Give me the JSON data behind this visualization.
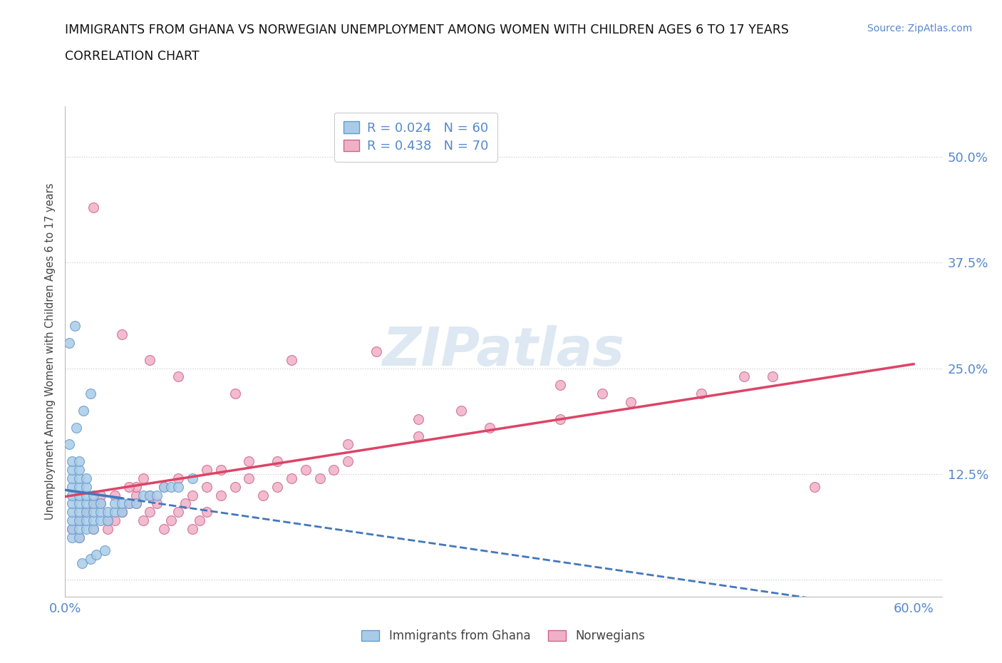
{
  "title_line1": "IMMIGRANTS FROM GHANA VS NORWEGIAN UNEMPLOYMENT AMONG WOMEN WITH CHILDREN AGES 6 TO 17 YEARS",
  "title_line2": "CORRELATION CHART",
  "source_text": "Source: ZipAtlas.com",
  "ylabel": "Unemployment Among Women with Children Ages 6 to 17 years",
  "xlim": [
    0.0,
    0.62
  ],
  "ylim": [
    -0.02,
    0.56
  ],
  "ytick_vals": [
    0.0,
    0.125,
    0.25,
    0.375,
    0.5
  ],
  "ytick_labels": [
    "",
    "12.5%",
    "25.0%",
    "37.5%",
    "50.0%"
  ],
  "xtick_vals": [
    0.0,
    0.1,
    0.2,
    0.3,
    0.4,
    0.5,
    0.6
  ],
  "xtick_labels": [
    "0.0%",
    "",
    "",
    "",
    "",
    "",
    "60.0%"
  ],
  "ghana_color": "#a8cce8",
  "ghana_edge_color": "#6699cc",
  "norwegian_color": "#f0b0c8",
  "norwegian_edge_color": "#cc6688",
  "ghana_line_color": "#4477bb",
  "norwegian_line_color": "#dd4466",
  "watermark_color": "#dde8f2",
  "background_color": "#ffffff",
  "grid_color": "#cccccc",
  "title_color": "#111111",
  "axis_label_color": "#444444",
  "tick_label_color": "#5588cc",
  "source_color": "#5588cc",
  "legend_color": "#5588cc",
  "ghana_R": "0.024",
  "ghana_N": "60",
  "norwegian_R": "0.438",
  "norwegian_N": "70",
  "marker_size": 100,
  "ghana_x": [
    0.005,
    0.005,
    0.005,
    0.005,
    0.005,
    0.005,
    0.005,
    0.005,
    0.005,
    0.005,
    0.01,
    0.01,
    0.01,
    0.01,
    0.01,
    0.01,
    0.01,
    0.01,
    0.01,
    0.01,
    0.015,
    0.015,
    0.015,
    0.015,
    0.015,
    0.015,
    0.015,
    0.02,
    0.02,
    0.02,
    0.02,
    0.02,
    0.025,
    0.025,
    0.025,
    0.03,
    0.03,
    0.035,
    0.035,
    0.04,
    0.04,
    0.045,
    0.05,
    0.055,
    0.06,
    0.065,
    0.07,
    0.075,
    0.08,
    0.09,
    0.003,
    0.007,
    0.012,
    0.018,
    0.022,
    0.028,
    0.003,
    0.008,
    0.013,
    0.018
  ],
  "ghana_y": [
    0.05,
    0.06,
    0.07,
    0.08,
    0.09,
    0.1,
    0.11,
    0.12,
    0.13,
    0.14,
    0.05,
    0.06,
    0.07,
    0.08,
    0.09,
    0.1,
    0.11,
    0.12,
    0.13,
    0.14,
    0.06,
    0.07,
    0.08,
    0.09,
    0.1,
    0.11,
    0.12,
    0.06,
    0.07,
    0.08,
    0.09,
    0.1,
    0.07,
    0.08,
    0.09,
    0.07,
    0.08,
    0.08,
    0.09,
    0.08,
    0.09,
    0.09,
    0.09,
    0.1,
    0.1,
    0.1,
    0.11,
    0.11,
    0.11,
    0.12,
    0.28,
    0.3,
    0.02,
    0.025,
    0.03,
    0.035,
    0.16,
    0.18,
    0.2,
    0.22
  ],
  "norwegian_x": [
    0.005,
    0.01,
    0.015,
    0.02,
    0.025,
    0.03,
    0.035,
    0.04,
    0.045,
    0.05,
    0.055,
    0.06,
    0.065,
    0.07,
    0.075,
    0.08,
    0.085,
    0.09,
    0.095,
    0.1,
    0.01,
    0.02,
    0.03,
    0.04,
    0.05,
    0.06,
    0.07,
    0.08,
    0.09,
    0.1,
    0.11,
    0.12,
    0.13,
    0.14,
    0.15,
    0.16,
    0.17,
    0.18,
    0.19,
    0.2,
    0.05,
    0.1,
    0.15,
    0.2,
    0.25,
    0.3,
    0.35,
    0.4,
    0.45,
    0.5,
    0.015,
    0.025,
    0.035,
    0.045,
    0.055,
    0.11,
    0.13,
    0.25,
    0.35,
    0.53,
    0.02,
    0.04,
    0.06,
    0.08,
    0.12,
    0.16,
    0.22,
    0.28,
    0.38,
    0.48
  ],
  "norwegian_y": [
    0.06,
    0.07,
    0.08,
    0.09,
    0.1,
    0.06,
    0.07,
    0.08,
    0.09,
    0.1,
    0.07,
    0.08,
    0.09,
    0.06,
    0.07,
    0.08,
    0.09,
    0.06,
    0.07,
    0.08,
    0.05,
    0.06,
    0.07,
    0.08,
    0.09,
    0.1,
    0.11,
    0.12,
    0.1,
    0.11,
    0.1,
    0.11,
    0.12,
    0.1,
    0.11,
    0.12,
    0.13,
    0.12,
    0.13,
    0.14,
    0.11,
    0.13,
    0.14,
    0.16,
    0.17,
    0.18,
    0.19,
    0.21,
    0.22,
    0.24,
    0.08,
    0.09,
    0.1,
    0.11,
    0.12,
    0.13,
    0.14,
    0.19,
    0.23,
    0.11,
    0.44,
    0.29,
    0.26,
    0.24,
    0.22,
    0.26,
    0.27,
    0.2,
    0.22,
    0.24
  ]
}
